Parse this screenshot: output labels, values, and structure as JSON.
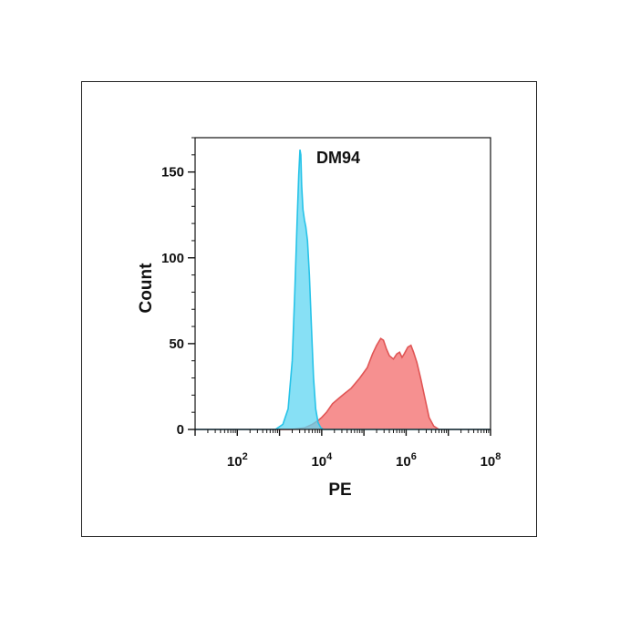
{
  "chart_data": {
    "type": "area",
    "title": "DM94",
    "xlabel": "PE",
    "ylabel": "Count",
    "x_scale": "log10",
    "xlim": [
      10,
      100000000
    ],
    "ylim": [
      0,
      170
    ],
    "y_ticks": [
      0,
      50,
      100,
      150
    ],
    "x_tick_labels": [
      {
        "base": "10",
        "exp": "2",
        "value": 100
      },
      {
        "base": "10",
        "exp": "4",
        "value": 10000
      },
      {
        "base": "10",
        "exp": "6",
        "value": 1000000
      },
      {
        "base": "10",
        "exp": "8",
        "value": 100000000
      }
    ],
    "series": [
      {
        "color": "#f47c7c",
        "stroke": "#e05555",
        "points": [
          [
            10,
            0
          ],
          [
            2000,
            0
          ],
          [
            4000,
            1
          ],
          [
            6000,
            3
          ],
          [
            8000,
            5
          ],
          [
            10000,
            7
          ],
          [
            13000,
            10
          ],
          [
            18000,
            15
          ],
          [
            25000,
            18
          ],
          [
            35000,
            21
          ],
          [
            50000,
            24
          ],
          [
            80000,
            30
          ],
          [
            120000,
            36
          ],
          [
            160000,
            44
          ],
          [
            200000,
            49
          ],
          [
            250000,
            53
          ],
          [
            290000,
            52
          ],
          [
            340000,
            47
          ],
          [
            400000,
            43
          ],
          [
            500000,
            41
          ],
          [
            600000,
            44
          ],
          [
            700000,
            45
          ],
          [
            800000,
            42
          ],
          [
            900000,
            44
          ],
          [
            1100000,
            48
          ],
          [
            1300000,
            49
          ],
          [
            1500000,
            45
          ],
          [
            1800000,
            39
          ],
          [
            2200000,
            30
          ],
          [
            2800000,
            18
          ],
          [
            3500000,
            7
          ],
          [
            4500000,
            2
          ],
          [
            6000000,
            0
          ],
          [
            100000000,
            0
          ]
        ]
      },
      {
        "color": "#5fd6f2",
        "stroke": "#27c3e8",
        "points": [
          [
            10,
            0
          ],
          [
            800,
            0
          ],
          [
            1200,
            3
          ],
          [
            1600,
            12
          ],
          [
            2000,
            40
          ],
          [
            2300,
            80
          ],
          [
            2600,
            120
          ],
          [
            2850,
            148
          ],
          [
            3050,
            163
          ],
          [
            3200,
            160
          ],
          [
            3350,
            142
          ],
          [
            3600,
            128
          ],
          [
            3900,
            122
          ],
          [
            4200,
            118
          ],
          [
            4600,
            110
          ],
          [
            5100,
            90
          ],
          [
            5700,
            60
          ],
          [
            6400,
            30
          ],
          [
            7200,
            12
          ],
          [
            8200,
            4
          ],
          [
            9500,
            1
          ],
          [
            11000,
            0
          ],
          [
            100000000,
            0
          ]
        ]
      }
    ]
  }
}
